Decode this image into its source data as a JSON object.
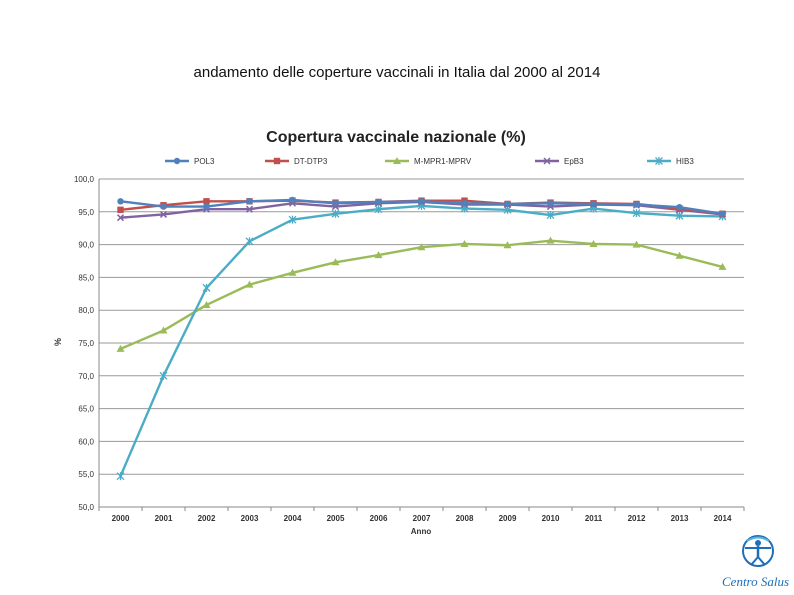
{
  "slide": {
    "title": "andamento delle coperture vaccinali in Italia dal 2000 al 2014"
  },
  "logo": {
    "name": "Centro Salus",
    "icon": "vitruvian-man-icon",
    "color": "#1e6fb8"
  },
  "chart_data": {
    "type": "line",
    "title": "Copertura vaccinale nazionale (%)",
    "xlabel": "Anno",
    "ylabel": "%",
    "ylim": [
      50,
      100
    ],
    "ytick_step": 5,
    "ytick_labels": [
      "50,0",
      "55,0",
      "60,0",
      "65,0",
      "70,0",
      "75,0",
      "80,0",
      "85,0",
      "90,0",
      "95,0",
      "100,0"
    ],
    "categories": [
      "2000",
      "2001",
      "2002",
      "2003",
      "2004",
      "2005",
      "2006",
      "2007",
      "2008",
      "2009",
      "2010",
      "2011",
      "2012",
      "2013",
      "2014"
    ],
    "grid": true,
    "legend_position": "top",
    "series": [
      {
        "name": "POL3",
        "color": "#4f81bd",
        "marker": "circle",
        "values": [
          96.6,
          95.8,
          95.8,
          96.6,
          96.8,
          96.3,
          96.5,
          96.6,
          96.3,
          96.2,
          96.3,
          96.2,
          96.1,
          95.7,
          94.7
        ]
      },
      {
        "name": "DT-DTP3",
        "color": "#c0504d",
        "marker": "square",
        "values": [
          95.3,
          96.0,
          96.6,
          96.6,
          96.7,
          96.4,
          96.5,
          96.7,
          96.7,
          96.2,
          96.4,
          96.3,
          96.2,
          95.5,
          94.7
        ]
      },
      {
        "name": "M-MPR1-MPRV",
        "color": "#9bbb59",
        "marker": "triangle",
        "values": [
          74.1,
          76.9,
          80.8,
          83.9,
          85.7,
          87.3,
          88.4,
          89.6,
          90.1,
          89.9,
          90.6,
          90.1,
          90.0,
          88.3,
          86.6
        ]
      },
      {
        "name": "EpB3",
        "color": "#8064a2",
        "marker": "x",
        "values": [
          94.1,
          94.6,
          95.4,
          95.4,
          96.3,
          95.8,
          96.3,
          96.5,
          96.1,
          96.1,
          95.8,
          96.1,
          96.0,
          95.3,
          94.6
        ]
      },
      {
        "name": "HIB3",
        "color": "#4bacc6",
        "marker": "star",
        "values": [
          54.7,
          70.0,
          83.4,
          90.5,
          93.8,
          94.7,
          95.4,
          95.9,
          95.5,
          95.3,
          94.5,
          95.5,
          94.8,
          94.4,
          94.3
        ]
      }
    ]
  }
}
